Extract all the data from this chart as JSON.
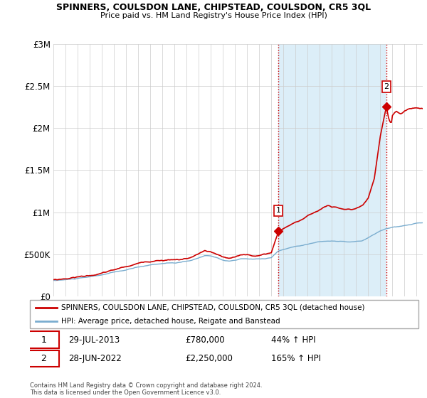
{
  "title": "SPINNERS, COULSDON LANE, CHIPSTEAD, COULSDON, CR5 3QL",
  "subtitle": "Price paid vs. HM Land Registry's House Price Index (HPI)",
  "legend_line1": "SPINNERS, COULSDON LANE, CHIPSTEAD, COULSDON, CR5 3QL (detached house)",
  "legend_line2": "HPI: Average price, detached house, Reigate and Banstead",
  "transaction1_date": "29-JUL-2013",
  "transaction1_price": "£780,000",
  "transaction1_hpi": "44% ↑ HPI",
  "transaction2_date": "28-JUN-2022",
  "transaction2_price": "£2,250,000",
  "transaction2_hpi": "165% ↑ HPI",
  "footnote": "Contains HM Land Registry data © Crown copyright and database right 2024.\nThis data is licensed under the Open Government Licence v3.0.",
  "red_line_color": "#cc0000",
  "blue_line_color": "#7aadcf",
  "shade_color": "#dceef8",
  "grid_color": "#cccccc",
  "ylim": [
    0,
    3000000
  ],
  "yticks": [
    0,
    500000,
    1000000,
    1500000,
    2000000,
    2500000,
    3000000
  ],
  "ytick_labels": [
    "£0",
    "£500K",
    "£1M",
    "£1.5M",
    "£2M",
    "£2.5M",
    "£3M"
  ],
  "xlim_start": 1995.0,
  "xlim_end": 2025.5,
  "t1_year": 2013.583,
  "t2_year": 2022.5,
  "t1_price": 780000,
  "t2_price": 2250000
}
